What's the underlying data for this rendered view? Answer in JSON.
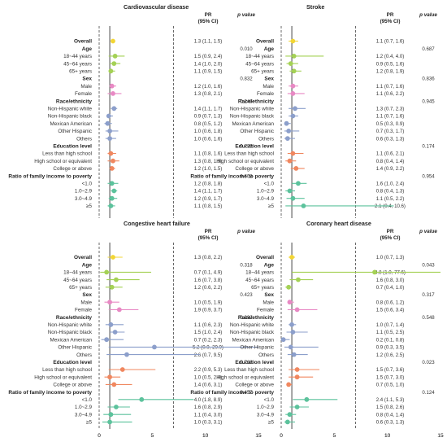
{
  "rows": [
    {
      "label": "Overall",
      "bold": true,
      "group": "overall"
    },
    {
      "label": "Age",
      "bold": true,
      "group": "header"
    },
    {
      "label": "18~44 years",
      "bold": false,
      "group": "age"
    },
    {
      "label": "45~64 years",
      "bold": false,
      "group": "age"
    },
    {
      "label": "65+ years",
      "bold": false,
      "group": "age"
    },
    {
      "label": "Sex",
      "bold": true,
      "group": "header"
    },
    {
      "label": "Male",
      "bold": false,
      "group": "sex"
    },
    {
      "label": "Female",
      "bold": false,
      "group": "sex"
    },
    {
      "label": "Race/ethnicity",
      "bold": true,
      "group": "header"
    },
    {
      "label": "Non-Hispanic white",
      "bold": false,
      "group": "race"
    },
    {
      "label": "Non-Hispanic black",
      "bold": false,
      "group": "race"
    },
    {
      "label": "Mexican American",
      "bold": false,
      "group": "race"
    },
    {
      "label": "Other Hispanic",
      "bold": false,
      "group": "race"
    },
    {
      "label": "Others",
      "bold": false,
      "group": "race"
    },
    {
      "label": "Education level",
      "bold": true,
      "group": "header"
    },
    {
      "label": "Less than high school",
      "bold": false,
      "group": "edu"
    },
    {
      "label": "High school or equivalent",
      "bold": false,
      "group": "edu"
    },
    {
      "label": "College or above",
      "bold": false,
      "group": "edu"
    },
    {
      "label": "Ratio of family income to poverty",
      "bold": true,
      "group": "header"
    },
    {
      "label": "<1.0",
      "bold": false,
      "group": "income"
    },
    {
      "label": "1.0~2.9",
      "bold": false,
      "group": "income"
    },
    {
      "label": "3.0~4.9",
      "bold": false,
      "group": "income"
    },
    {
      "label": "≥5",
      "bold": false,
      "group": "income"
    }
  ],
  "group_colors": {
    "overall": "#f2d534",
    "age": "#a4d155",
    "sex": "#e889c4",
    "race": "#8c9fcb",
    "edu": "#f0875f",
    "income": "#5cc29c"
  },
  "column_headers": {
    "pr": "PR",
    "ci": "(95% CI)",
    "p": "p value"
  },
  "chart_data": [
    {
      "type": "forest",
      "title": "Cardiovascular disease",
      "xlim": [
        0,
        15
      ],
      "xticks": [
        0,
        5,
        10,
        15
      ],
      "dashed_x": [
        0,
        7
      ],
      "ref_line": 1,
      "points": [
        [
          1.3,
          1.1,
          1.5
        ],
        null,
        [
          1.5,
          0.9,
          2.4
        ],
        [
          1.4,
          1.0,
          2.0
        ],
        [
          1.1,
          0.9,
          1.5
        ],
        null,
        [
          1.2,
          1.0,
          1.6
        ],
        [
          1.3,
          0.8,
          2.1
        ],
        null,
        [
          1.4,
          1.1,
          1.7
        ],
        [
          0.9,
          0.7,
          1.3
        ],
        [
          0.8,
          0.5,
          1.2
        ],
        [
          1.0,
          0.6,
          1.8
        ],
        [
          1.0,
          0.6,
          1.6
        ],
        null,
        [
          1.1,
          0.8,
          1.6
        ],
        [
          1.3,
          0.8,
          1.9
        ],
        [
          1.2,
          1.0,
          1.5
        ],
        null,
        [
          1.2,
          0.8,
          1.8
        ],
        [
          1.4,
          1.1,
          1.7
        ],
        [
          1.2,
          0.9,
          1.7
        ],
        [
          1.1,
          0.8,
          1.5
        ]
      ],
      "pr_text": [
        "1.3 (1.1, 1.5)",
        "",
        "1.5 (0.9, 2.4)",
        "1.4 (1.0, 2.0)",
        "1.1 (0.9, 1.5)",
        "",
        "1.2 (1.0, 1.6)",
        "1.3 (0.8, 2.1)",
        "",
        "1.4 (1.1, 1.7)",
        "0.9 (0.7, 1.3)",
        "0.8 (0.5, 1.2)",
        "1.0 (0.6, 1.8)",
        "1.0 (0.6, 1.6)",
        "",
        "1.1 (0.8, 1.6)",
        "1.3 (0.8, 1.9)",
        "1.2 (1.0, 1.5)",
        "",
        "1.2 (0.8, 1.8)",
        "1.4 (1.1, 1.7)",
        "1.2 (0.9, 1.7)",
        "1.1 (0.8, 1.5)"
      ],
      "p_text": [
        "",
        "0.010",
        "",
        "",
        "",
        "0.832",
        "",
        "",
        "0.246",
        "",
        "",
        "",
        "",
        "",
        "0.775",
        "",
        "",
        "",
        "0.603",
        "",
        "",
        "",
        ""
      ]
    },
    {
      "type": "forest",
      "title": "Stroke",
      "xlim": [
        0,
        15
      ],
      "xticks": [
        0,
        5,
        10,
        15
      ],
      "dashed_x": [
        0,
        7
      ],
      "ref_line": 1,
      "points": [
        [
          1.1,
          0.7,
          1.6
        ],
        null,
        [
          1.2,
          0.4,
          4.0
        ],
        [
          0.9,
          0.5,
          1.6
        ],
        [
          1.2,
          0.8,
          1.9
        ],
        null,
        [
          1.1,
          0.7,
          1.6
        ],
        [
          1.1,
          0.6,
          2.2
        ],
        null,
        [
          1.3,
          0.7,
          2.3
        ],
        [
          1.1,
          0.7,
          1.6
        ],
        [
          0.5,
          0.3,
          0.9
        ],
        [
          0.7,
          0.3,
          1.7
        ],
        [
          0.6,
          0.3,
          1.3
        ],
        null,
        [
          1.1,
          0.6,
          2.1
        ],
        [
          0.8,
          0.4,
          1.4
        ],
        [
          1.4,
          0.9,
          2.2
        ],
        null,
        [
          1.6,
          1.0,
          2.4
        ],
        [
          0.8,
          0.4,
          1.3
        ],
        [
          1.1,
          0.5,
          2.2
        ],
        [
          2.1,
          0.4,
          10.6
        ]
      ],
      "pr_text": [
        "1.1 (0.7, 1.6)",
        "",
        "1.2 (0.4, 4.0)",
        "0.9 (0.5, 1.6)",
        "1.2 (0.8, 1.9)",
        "",
        "1.1 (0.7, 1.6)",
        "1.1 (0.6, 2.2)",
        "",
        "1.3 (0.7, 2.3)",
        "1.1 (0.7, 1.6)",
        "0.5 (0.3, 0.9)",
        "0.7 (0.3, 1.7)",
        "0.6 (0.3, 1.3)",
        "",
        "1.1 (0.6, 2.1)",
        "0.8 (0.4, 1.4)",
        "1.4 (0.9, 2.2)",
        "",
        "1.6 (1.0, 2.4)",
        "0.8 (0.4, 1.3)",
        "1.1 (0.5, 2.2)",
        "2.1 (0.4, 10.6)"
      ],
      "p_text": [
        "",
        "0.687",
        "",
        "",
        "",
        "0.836",
        "",
        "",
        "0.945",
        "",
        "",
        "",
        "",
        "",
        "0.174",
        "",
        "",
        "",
        "0.954",
        "",
        "",
        "",
        ""
      ]
    },
    {
      "type": "forest",
      "title": "Congestive heart failure",
      "xlim": [
        0,
        15
      ],
      "xticks": [
        0,
        5,
        10,
        15
      ],
      "dashed_x": [
        0,
        7
      ],
      "ref_line": 1,
      "points": [
        [
          1.3,
          0.8,
          2.2
        ],
        null,
        [
          0.7,
          0.1,
          4.9
        ],
        [
          1.6,
          0.7,
          3.8
        ],
        [
          1.2,
          0.6,
          2.2
        ],
        null,
        [
          1.0,
          0.5,
          1.9
        ],
        [
          1.9,
          0.9,
          3.7
        ],
        null,
        [
          1.1,
          0.6,
          2.3
        ],
        [
          1.5,
          1.0,
          2.4
        ],
        [
          0.7,
          0.2,
          2.3
        ],
        [
          5.2,
          0.9,
          29.9
        ],
        [
          2.6,
          0.7,
          9.5
        ],
        null,
        [
          2.2,
          0.9,
          5.3
        ],
        [
          1.0,
          0.5,
          2.0
        ],
        [
          1.4,
          0.6,
          3.1
        ],
        null,
        [
          4.0,
          1.8,
          8.9
        ],
        [
          1.6,
          0.8,
          2.9
        ],
        [
          1.1,
          0.4,
          3.0
        ],
        [
          1.0,
          0.3,
          3.1
        ]
      ],
      "pr_text": [
        "1.3 (0.8, 2.2)",
        "",
        "0.7 (0.1, 4.9)",
        "1.6 (0.7, 3.8)",
        "1.2 (0.6, 2.2)",
        "",
        "1.0 (0.5, 1.9)",
        "1.9 (0.9, 3.7)",
        "",
        "1.1 (0.6, 2.3)",
        "1.5 (1.0, 2.4)",
        "0.7 (0.2, 2.3)",
        "5.2 (0.9, 29.9)",
        "2.6 (0.7, 9.5)",
        "",
        "2.2 (0.9, 5.3)",
        "1.0 (0.5, 2.0)",
        "1.4 (0.6, 3.1)",
        "",
        "4.0 (1.8, 8.9)",
        "1.6 (0.8, 2.9)",
        "1.1 (0.4, 3.0)",
        "1.0 (0.3, 3.1)"
      ],
      "p_text": [
        "",
        "0.318",
        "",
        "",
        "",
        "0.423",
        "",
        "",
        "0.092",
        "",
        "",
        "",
        "",
        "",
        "0.768",
        "",
        "",
        "",
        "0.457",
        "",
        "",
        "",
        ""
      ]
    },
    {
      "type": "forest",
      "title": "Coronary heart disease",
      "xlim": [
        0,
        15
      ],
      "xticks": [
        0,
        5,
        10,
        15
      ],
      "dashed_x": [
        0,
        7
      ],
      "ref_line": 1,
      "points": [
        [
          1.0,
          0.7,
          1.3
        ],
        null,
        [
          8.8,
          1.0,
          77.6
        ],
        [
          1.6,
          0.8,
          3.0
        ],
        [
          0.7,
          0.4,
          1.0
        ],
        null,
        [
          0.8,
          0.6,
          1.2
        ],
        [
          1.5,
          0.6,
          3.4
        ],
        null,
        [
          1.0,
          0.7,
          1.4
        ],
        [
          1.1,
          0.5,
          2.5
        ],
        [
          0.2,
          0.1,
          0.8
        ],
        [
          0.9,
          0.3,
          3.5
        ],
        [
          1.2,
          0.6,
          2.5
        ],
        null,
        [
          1.5,
          0.7,
          3.6
        ],
        [
          1.5,
          0.7,
          3.0
        ],
        [
          0.7,
          0.5,
          1.0
        ],
        null,
        [
          2.4,
          1.1,
          5.3
        ],
        [
          1.5,
          0.8,
          2.6
        ],
        [
          0.8,
          0.4,
          1.4
        ],
        [
          0.6,
          0.3,
          1.3
        ]
      ],
      "pr_text": [
        "1.0 (0.7, 1.3)",
        "",
        "8.8 (1.0, 77.6)",
        "1.6 (0.8, 3.0)",
        "0.7 (0.4, 1.0)",
        "",
        "0.8 (0.6, 1.2)",
        "1.5 (0.6, 3.4)",
        "",
        "1.0 (0.7, 1.4)",
        "1.1 (0.5, 2.5)",
        "0.2 (0.1, 0.8)",
        "0.9 (0.3, 3.5)",
        "1.2 (0.6, 2.5)",
        "",
        "1.5 (0.7, 3.6)",
        "1.5 (0.7, 3.0)",
        "0.7 (0.5, 1.0)",
        "",
        "2.4 (1.1, 5.3)",
        "1.5 (0.8, 2.6)",
        "0.8 (0.4, 1.4)",
        "0.6 (0.3, 1.3)"
      ],
      "p_text": [
        "",
        "0.043",
        "",
        "",
        "",
        "0.317",
        "",
        "",
        "0.548",
        "",
        "",
        "",
        "",
        "",
        "0.023",
        "",
        "",
        "",
        "0.124",
        "",
        "",
        "",
        ""
      ]
    }
  ]
}
